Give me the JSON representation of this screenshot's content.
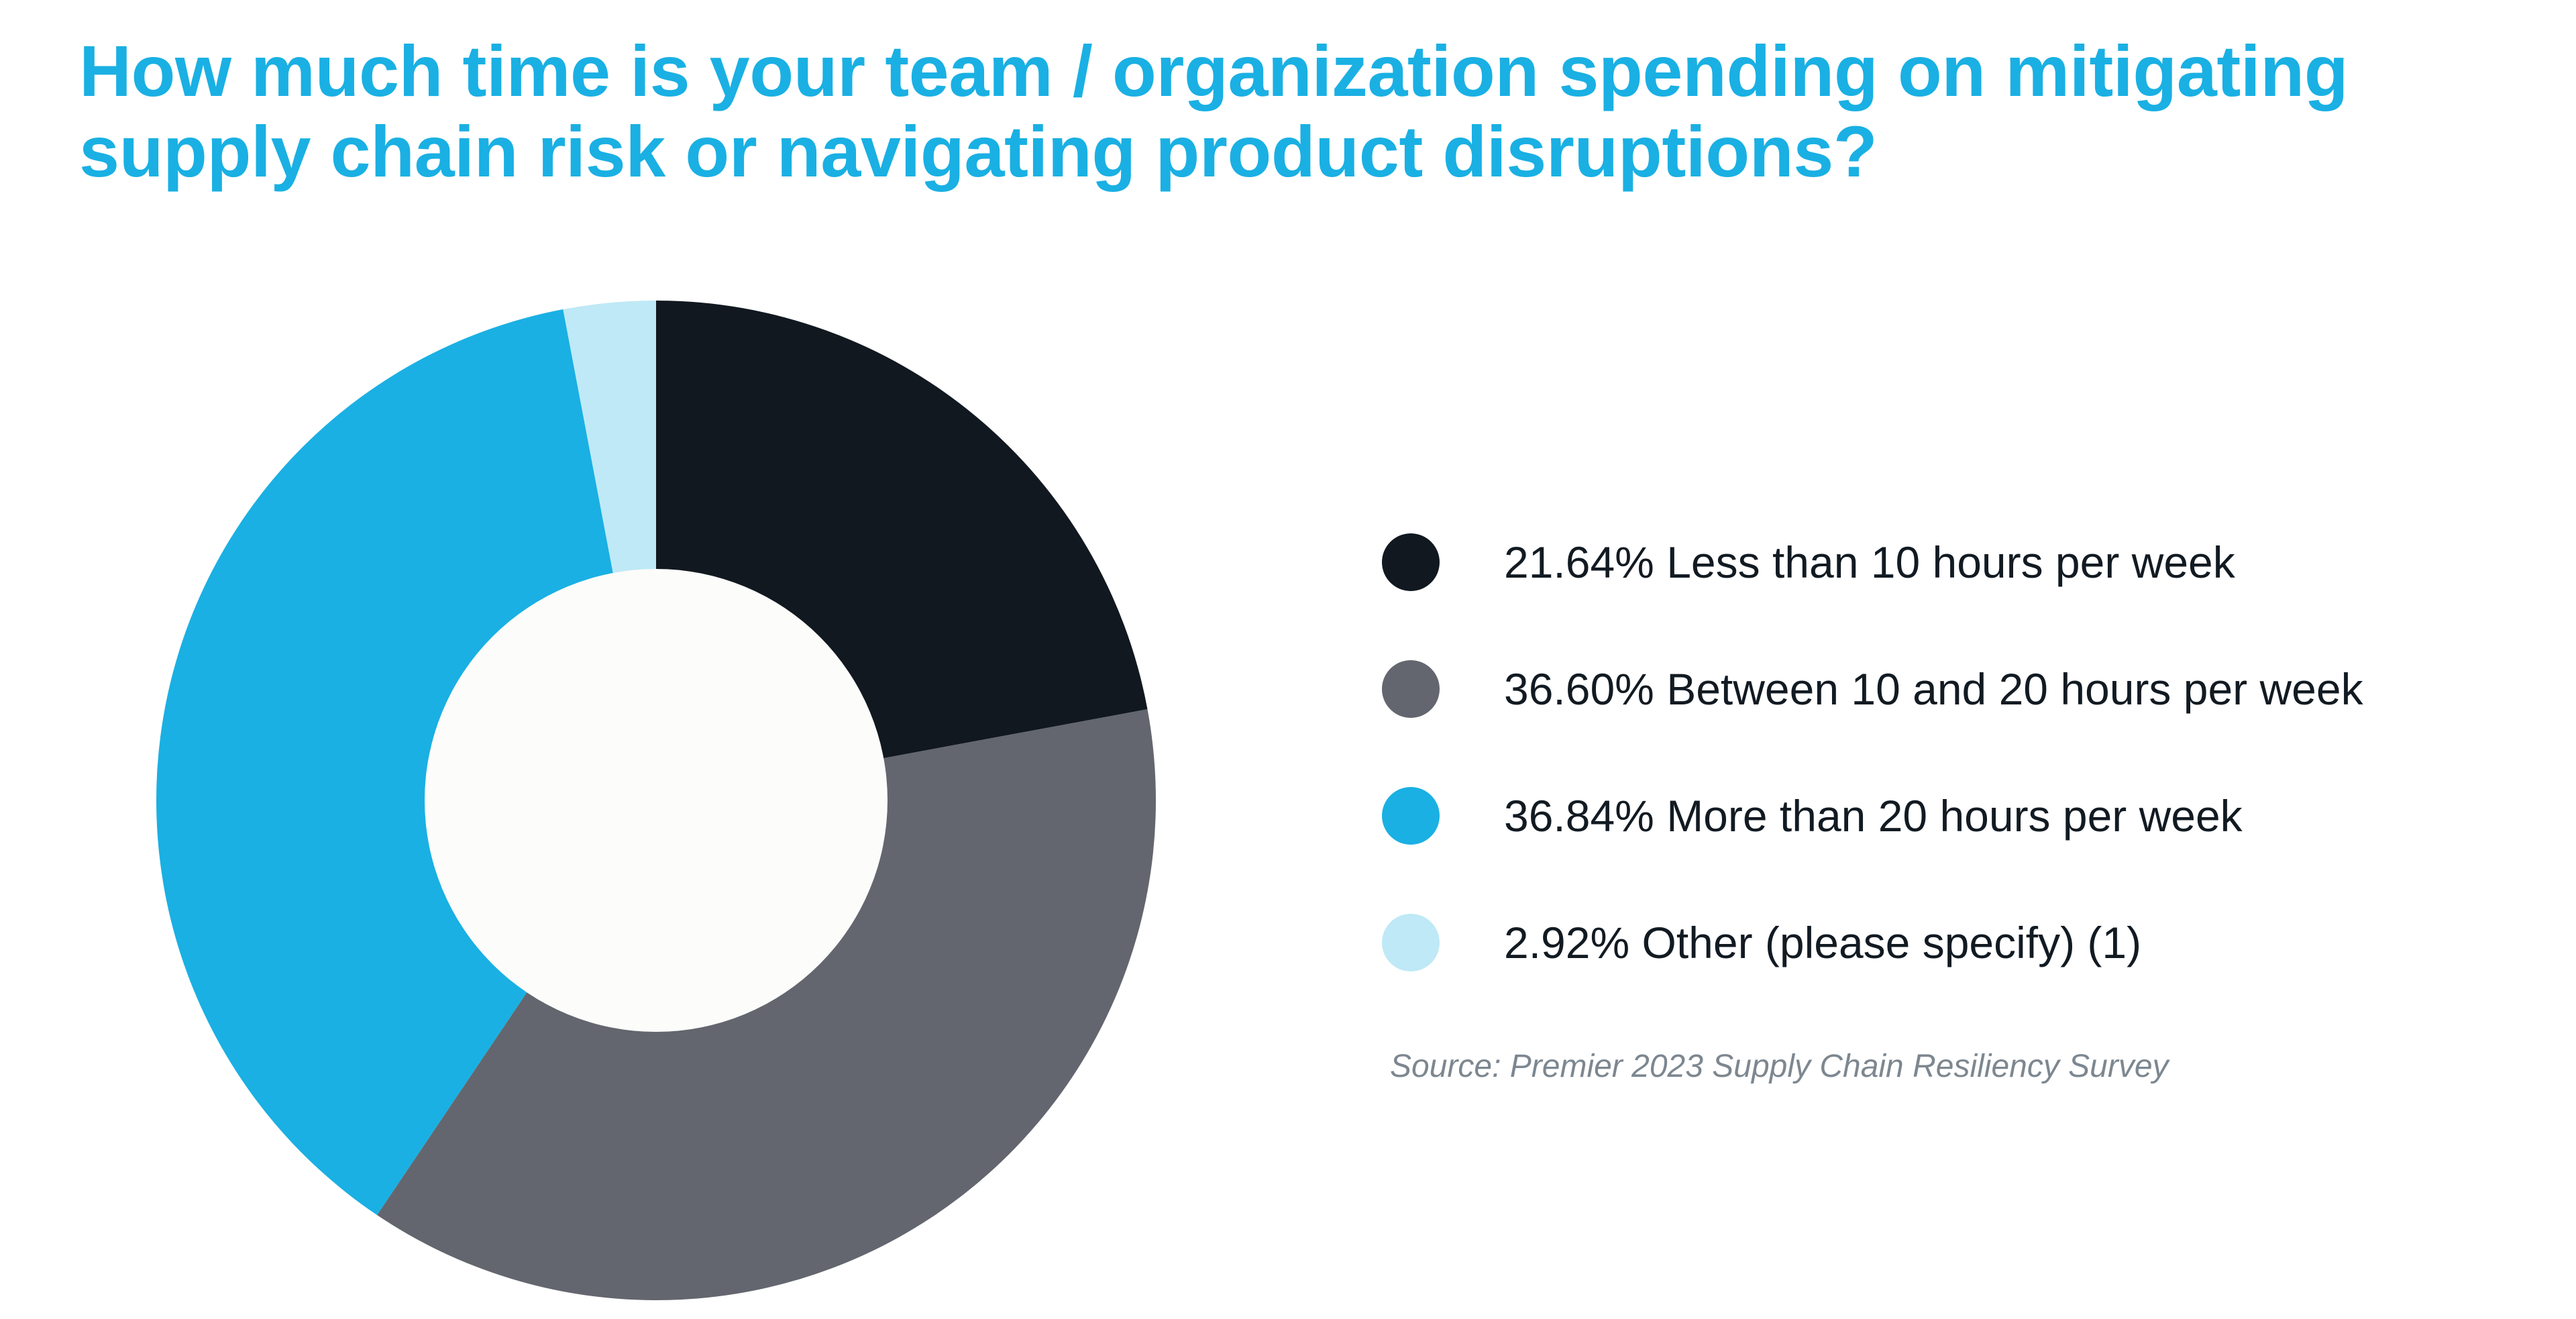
{
  "chart_data": {
    "type": "pie",
    "variant": "donut",
    "title_lines": [
      "How much time is your team / organization spending on mitigating",
      "supply chain risk or navigating product disruptions?"
    ],
    "slices": [
      {
        "value": 21.64,
        "percent_label": "21.64%",
        "label": "Less than 10 hours per week",
        "color": "#111820"
      },
      {
        "value": 36.6,
        "percent_label": "36.60%",
        "label": "Between 10 and 20 hours per week",
        "color": "#63666e"
      },
      {
        "value": 36.84,
        "percent_label": "36.84%",
        "label": "More than 20 hours per week",
        "color": "#1ab0e3"
      },
      {
        "value": 2.92,
        "percent_label": "2.92%",
        "label": "Other (please specify) (1)",
        "color": "#bfe9f6"
      }
    ],
    "start_angle_deg": 0,
    "direction": "clockwise",
    "legend_position": "right",
    "source": "Source: Premier 2023 Supply Chain Resiliency Survey"
  },
  "colors": {
    "title": "#1ab0e3",
    "donut_hole": "#fcfcfa",
    "legend_text": "#121a22",
    "source_text": "#7d8790"
  }
}
